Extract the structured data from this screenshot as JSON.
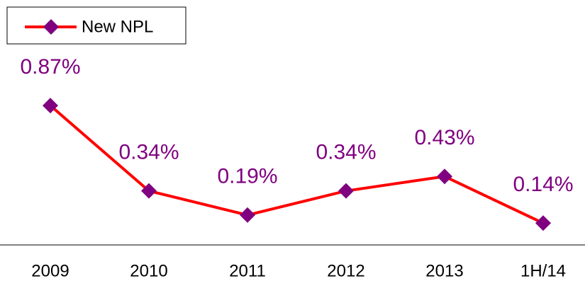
{
  "chart_data": {
    "type": "line",
    "categories": [
      "2009",
      "2010",
      "2011",
      "2012",
      "2013",
      "1H/14"
    ],
    "series": [
      {
        "name": "New NPL",
        "color": "#ff0000",
        "marker_color": "#800080",
        "values": [
          0.87,
          0.34,
          0.19,
          0.34,
          0.43,
          0.14
        ],
        "value_labels": [
          "0.87%",
          "0.34%",
          "0.19%",
          "0.34%",
          "0.43%",
          "0.14%"
        ]
      }
    ],
    "legend": "upper left"
  }
}
